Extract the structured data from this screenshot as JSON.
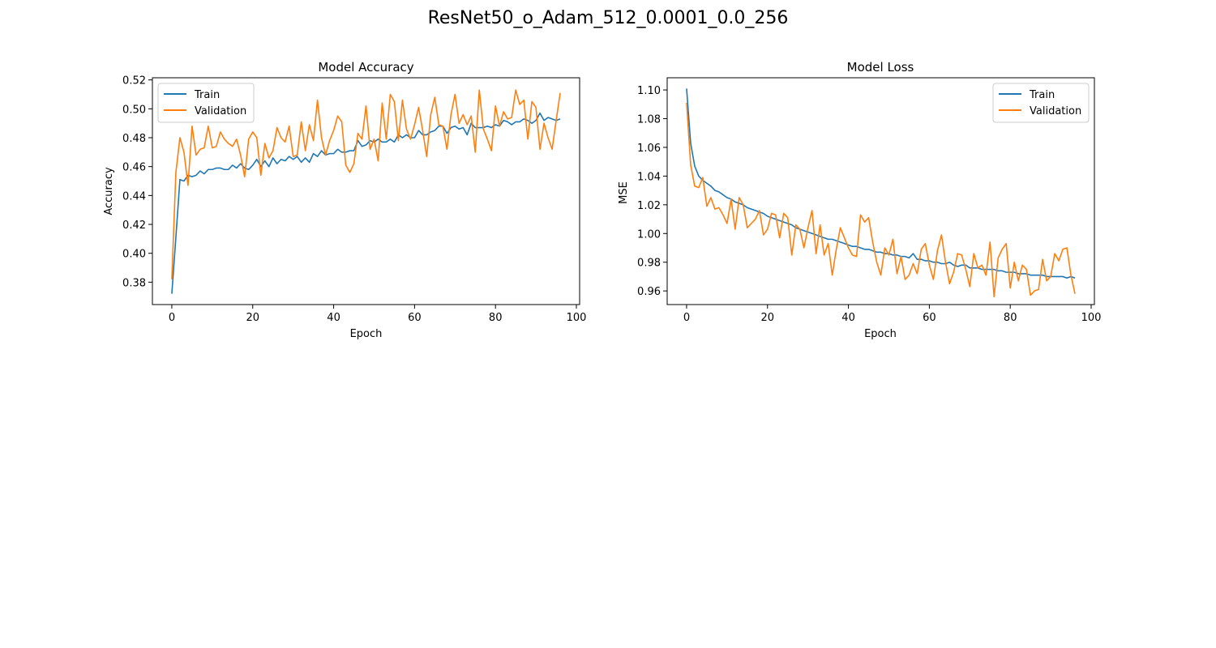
{
  "figure": {
    "suptitle": "ResNet50_o_Adam_512_0.0001_0.0_256"
  },
  "colors": {
    "train": "#1f77b4",
    "validation": "#ff7f0e",
    "axis": "#000000",
    "legend_border": "#cccccc"
  },
  "chart_data": [
    {
      "type": "line",
      "title": "Model Accuracy",
      "xlabel": "Epoch",
      "ylabel": "Accuracy",
      "xlim": [
        -4.8,
        100.8
      ],
      "ylim": [
        0.3645,
        0.5215
      ],
      "xticks": [
        0,
        20,
        40,
        60,
        80,
        100
      ],
      "yticks": [
        0.38,
        0.4,
        0.42,
        0.44,
        0.46,
        0.48,
        0.5,
        0.52
      ],
      "ytick_decimals": 2,
      "grid": false,
      "legend_position": "upper-left",
      "series": [
        {
          "name": "Train",
          "color_key": "train",
          "values": [
            0.372,
            0.411,
            0.451,
            0.45,
            0.454,
            0.453,
            0.454,
            0.457,
            0.455,
            0.458,
            0.458,
            0.459,
            0.459,
            0.458,
            0.458,
            0.461,
            0.459,
            0.462,
            0.459,
            0.458,
            0.461,
            0.465,
            0.46,
            0.464,
            0.46,
            0.466,
            0.462,
            0.465,
            0.464,
            0.467,
            0.465,
            0.467,
            0.463,
            0.466,
            0.463,
            0.469,
            0.467,
            0.471,
            0.468,
            0.469,
            0.469,
            0.472,
            0.47,
            0.47,
            0.471,
            0.471,
            0.478,
            0.474,
            0.475,
            0.478,
            0.477,
            0.479,
            0.477,
            0.477,
            0.479,
            0.477,
            0.482,
            0.48,
            0.482,
            0.48,
            0.48,
            0.485,
            0.482,
            0.482,
            0.484,
            0.485,
            0.488,
            0.488,
            0.483,
            0.487,
            0.488,
            0.486,
            0.487,
            0.482,
            0.49,
            0.487,
            0.487,
            0.487,
            0.488,
            0.487,
            0.489,
            0.488,
            0.492,
            0.491,
            0.489,
            0.491,
            0.491,
            0.493,
            0.492,
            0.49,
            0.492,
            0.497,
            0.492,
            0.494,
            0.493,
            0.492,
            0.493
          ]
        },
        {
          "name": "Validation",
          "color_key": "validation",
          "values": [
            0.382,
            0.456,
            0.48,
            0.47,
            0.447,
            0.488,
            0.468,
            0.472,
            0.473,
            0.488,
            0.473,
            0.474,
            0.484,
            0.479,
            0.476,
            0.474,
            0.479,
            0.468,
            0.453,
            0.479,
            0.484,
            0.48,
            0.454,
            0.476,
            0.466,
            0.471,
            0.487,
            0.48,
            0.477,
            0.488,
            0.467,
            0.468,
            0.491,
            0.471,
            0.489,
            0.478,
            0.506,
            0.48,
            0.468,
            0.478,
            0.485,
            0.495,
            0.491,
            0.461,
            0.456,
            0.462,
            0.483,
            0.479,
            0.502,
            0.472,
            0.479,
            0.464,
            0.504,
            0.479,
            0.51,
            0.505,
            0.478,
            0.506,
            0.486,
            0.479,
            0.489,
            0.501,
            0.485,
            0.467,
            0.496,
            0.508,
            0.489,
            0.488,
            0.472,
            0.496,
            0.51,
            0.49,
            0.496,
            0.489,
            0.495,
            0.47,
            0.513,
            0.486,
            0.479,
            0.471,
            0.502,
            0.488,
            0.498,
            0.493,
            0.494,
            0.513,
            0.503,
            0.506,
            0.479,
            0.505,
            0.501,
            0.472,
            0.49,
            0.48,
            0.472,
            0.492,
            0.511
          ]
        }
      ]
    },
    {
      "type": "line",
      "title": "Model Loss",
      "xlabel": "Epoch",
      "ylabel": "MSE",
      "xlim": [
        -4.8,
        100.8
      ],
      "ylim": [
        0.9505,
        1.1085
      ],
      "xticks": [
        0,
        20,
        40,
        60,
        80,
        100
      ],
      "yticks": [
        0.96,
        0.98,
        1.0,
        1.02,
        1.04,
        1.06,
        1.08,
        1.1
      ],
      "ytick_decimals": 2,
      "grid": false,
      "legend_position": "upper-right",
      "series": [
        {
          "name": "Train",
          "color_key": "train",
          "values": [
            1.101,
            1.063,
            1.047,
            1.04,
            1.037,
            1.035,
            1.033,
            1.03,
            1.029,
            1.027,
            1.025,
            1.024,
            1.022,
            1.021,
            1.02,
            1.018,
            1.017,
            1.016,
            1.015,
            1.014,
            1.012,
            1.011,
            1.01,
            1.009,
            1.008,
            1.007,
            1.006,
            1.004,
            1.003,
            1.002,
            1.001,
            1.0,
            0.999,
            0.998,
            0.997,
            0.996,
            0.996,
            0.995,
            0.994,
            0.993,
            0.992,
            0.991,
            0.991,
            0.99,
            0.989,
            0.989,
            0.988,
            0.987,
            0.987,
            0.986,
            0.986,
            0.985,
            0.985,
            0.984,
            0.984,
            0.983,
            0.986,
            0.982,
            0.982,
            0.981,
            0.981,
            0.98,
            0.98,
            0.979,
            0.979,
            0.98,
            0.978,
            0.977,
            0.978,
            0.978,
            0.976,
            0.976,
            0.976,
            0.975,
            0.975,
            0.975,
            0.975,
            0.974,
            0.974,
            0.973,
            0.973,
            0.973,
            0.972,
            0.972,
            0.972,
            0.971,
            0.971,
            0.971,
            0.971,
            0.97,
            0.97,
            0.97,
            0.97,
            0.97,
            0.969,
            0.97,
            0.969
          ]
        },
        {
          "name": "Validation",
          "color_key": "validation",
          "values": [
            1.091,
            1.048,
            1.033,
            1.032,
            1.039,
            1.019,
            1.025,
            1.017,
            1.018,
            1.013,
            1.007,
            1.024,
            1.003,
            1.025,
            1.02,
            1.004,
            1.007,
            1.01,
            1.016,
            0.999,
            1.003,
            1.014,
            1.013,
            0.997,
            1.014,
            1.011,
            0.985,
            1.006,
            1.003,
            0.99,
            1.004,
            1.016,
            0.986,
            1.006,
            0.985,
            0.993,
            0.971,
            0.989,
            1.004,
            0.997,
            0.99,
            0.985,
            0.984,
            1.013,
            1.008,
            1.011,
            0.994,
            0.98,
            0.971,
            0.99,
            0.985,
            0.996,
            0.972,
            0.984,
            0.968,
            0.971,
            0.979,
            0.972,
            0.989,
            0.993,
            0.978,
            0.968,
            0.988,
            0.999,
            0.98,
            0.965,
            0.973,
            0.986,
            0.985,
            0.975,
            0.963,
            0.986,
            0.976,
            0.978,
            0.971,
            0.994,
            0.956,
            0.983,
            0.989,
            0.993,
            0.962,
            0.98,
            0.967,
            0.978,
            0.975,
            0.957,
            0.96,
            0.961,
            0.982,
            0.967,
            0.97,
            0.986,
            0.981,
            0.989,
            0.99,
            0.971,
            0.958
          ]
        }
      ]
    }
  ]
}
